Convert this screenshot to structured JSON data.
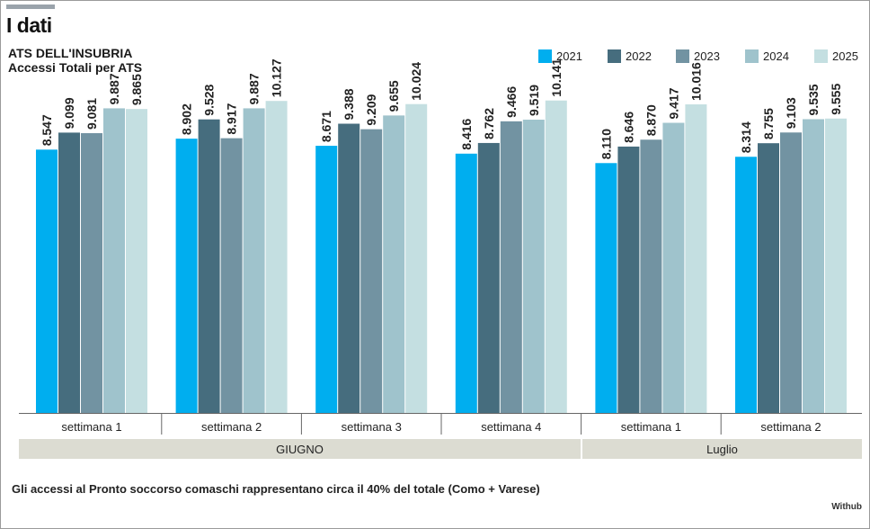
{
  "header": {
    "section_title": "I dati",
    "title": "ATS DELL'INSUBRIA",
    "subtitle": "Accessi Totali per ATS"
  },
  "footnote": "Gli accessi al Pronto soccorso comaschi rappresentano circa il 40% del totale (Como + Varese)",
  "credit": "Withub",
  "chart_data": {
    "type": "bar",
    "title": "ATS DELL'INSUBRIA",
    "subtitle": "Accessi Totali per ATS",
    "categories": [
      "settimana 1",
      "settimana 2",
      "settimana 3",
      "settimana 4",
      "settimana 1",
      "settimana 2"
    ],
    "groups": [
      {
        "label": "GIUGNO",
        "span": [
          0,
          3
        ]
      },
      {
        "label": "Luglio",
        "span": [
          4,
          5
        ]
      }
    ],
    "series": [
      {
        "name": "2021",
        "color": "#00aeef",
        "values": [
          8547,
          8902,
          8671,
          8416,
          8110,
          8314
        ],
        "labels": [
          "8.547",
          "8.902",
          "8.671",
          "8.416",
          "8.110",
          "8.314"
        ]
      },
      {
        "name": "2022",
        "color": "#466d7e",
        "values": [
          9099,
          9528,
          9388,
          8762,
          8646,
          8755
        ],
        "labels": [
          "9.099",
          "9.528",
          "9.388",
          "8.762",
          "8.646",
          "8.755"
        ]
      },
      {
        "name": "2023",
        "color": "#7293a2",
        "values": [
          9081,
          8917,
          9209,
          9466,
          8870,
          9103
        ],
        "labels": [
          "9.081",
          "8.917",
          "9.209",
          "9.466",
          "8.870",
          "9.103"
        ]
      },
      {
        "name": "2024",
        "color": "#9fc3cc",
        "values": [
          9887,
          9887,
          9655,
          9519,
          9417,
          9535
        ],
        "labels": [
          "9.887",
          "9.887",
          "9.655",
          "9.519",
          "9.417",
          "9.535"
        ]
      },
      {
        "name": "2025",
        "color": "#c4dfe1",
        "values": [
          9865,
          10127,
          10024,
          10141,
          10016,
          9555
        ],
        "labels": [
          "9.865",
          "10.127",
          "10.024",
          "10.141",
          "10.016",
          "9.555"
        ]
      }
    ],
    "ylim": [
      0,
      10600
    ],
    "xlabel": "",
    "ylabel": "",
    "grid": false,
    "legend": "top-right",
    "group_band_color": "#dcdcd2",
    "axis_color": "#666666"
  }
}
